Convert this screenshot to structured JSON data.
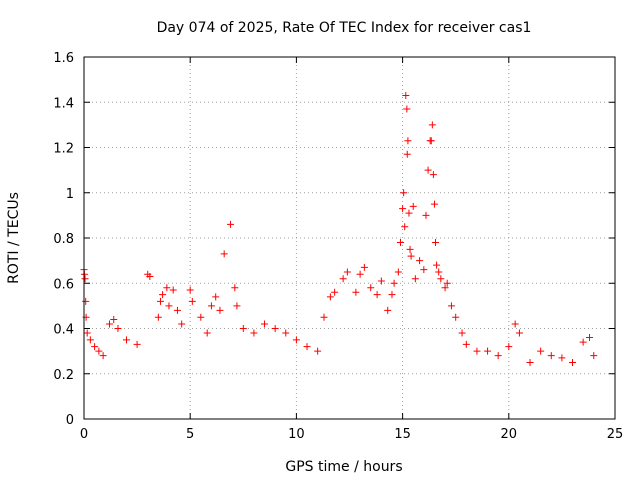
{
  "chart_data": {
    "type": "scatter",
    "title": "Day 074 of 2025, Rate Of TEC Index for receiver cas1",
    "xlabel": "GPS time / hours",
    "ylabel": "ROTI / TECUs",
    "xlim": [
      0,
      25
    ],
    "ylim": [
      0,
      1.6
    ],
    "xticks": [
      0,
      5,
      10,
      15,
      20,
      25
    ],
    "yticks": [
      0,
      0.2,
      0.4,
      0.6,
      0.8,
      1,
      1.2,
      1.4,
      1.6
    ],
    "ytick_labels": [
      "0",
      "0.2",
      "0.4",
      "0.6",
      "0.8",
      "1",
      "1.2",
      "1.4",
      "1.6"
    ],
    "grid": true,
    "marker": "plus",
    "color": "#ff0000",
    "series": [
      {
        "points": [
          [
            0.0,
            0.66
          ],
          [
            0.02,
            0.64
          ],
          [
            0.05,
            0.62
          ],
          [
            0.08,
            0.52
          ],
          [
            0.1,
            0.45
          ],
          [
            0.15,
            0.38
          ],
          [
            0.3,
            0.35
          ],
          [
            0.5,
            0.32
          ],
          [
            0.7,
            0.3
          ],
          [
            0.9,
            0.28
          ],
          [
            1.2,
            0.42
          ],
          [
            1.4,
            0.44
          ],
          [
            1.6,
            0.4
          ],
          [
            2.0,
            0.35
          ],
          [
            2.5,
            0.33
          ],
          [
            3.0,
            0.64
          ],
          [
            3.1,
            0.63
          ],
          [
            3.5,
            0.45
          ],
          [
            3.6,
            0.52
          ],
          [
            3.7,
            0.55
          ],
          [
            3.9,
            0.58
          ],
          [
            4.0,
            0.5
          ],
          [
            4.2,
            0.57
          ],
          [
            4.4,
            0.48
          ],
          [
            4.6,
            0.42
          ],
          [
            5.0,
            0.57
          ],
          [
            5.1,
            0.52
          ],
          [
            5.5,
            0.45
          ],
          [
            5.8,
            0.38
          ],
          [
            6.0,
            0.5
          ],
          [
            6.2,
            0.54
          ],
          [
            6.4,
            0.48
          ],
          [
            6.6,
            0.73
          ],
          [
            6.9,
            0.86
          ],
          [
            7.1,
            0.58
          ],
          [
            7.2,
            0.5
          ],
          [
            7.5,
            0.4
          ],
          [
            8.0,
            0.38
          ],
          [
            8.5,
            0.42
          ],
          [
            9.0,
            0.4
          ],
          [
            9.5,
            0.38
          ],
          [
            10.0,
            0.35
          ],
          [
            10.5,
            0.32
          ],
          [
            11.0,
            0.3
          ],
          [
            11.3,
            0.45
          ],
          [
            11.6,
            0.54
          ],
          [
            11.8,
            0.56
          ],
          [
            12.2,
            0.62
          ],
          [
            12.4,
            0.65
          ],
          [
            12.8,
            0.56
          ],
          [
            13.0,
            0.64
          ],
          [
            13.2,
            0.67
          ],
          [
            13.5,
            0.58
          ],
          [
            13.8,
            0.55
          ],
          [
            14.0,
            0.61
          ],
          [
            14.3,
            0.48
          ],
          [
            14.5,
            0.55
          ],
          [
            14.6,
            0.6
          ],
          [
            14.8,
            0.65
          ],
          [
            14.9,
            0.78
          ],
          [
            15.0,
            0.93
          ],
          [
            15.05,
            1.0
          ],
          [
            15.1,
            0.85
          ],
          [
            15.15,
            1.43
          ],
          [
            15.2,
            1.37
          ],
          [
            15.22,
            1.17
          ],
          [
            15.25,
            1.23
          ],
          [
            15.3,
            0.91
          ],
          [
            15.35,
            0.75
          ],
          [
            15.4,
            0.72
          ],
          [
            15.5,
            0.94
          ],
          [
            15.6,
            0.62
          ],
          [
            15.8,
            0.7
          ],
          [
            16.0,
            0.66
          ],
          [
            16.1,
            0.9
          ],
          [
            16.2,
            1.1
          ],
          [
            16.3,
            1.23
          ],
          [
            16.35,
            1.23
          ],
          [
            16.4,
            1.3
          ],
          [
            16.45,
            1.08
          ],
          [
            16.5,
            0.95
          ],
          [
            16.55,
            0.78
          ],
          [
            16.6,
            0.68
          ],
          [
            16.7,
            0.65
          ],
          [
            16.8,
            0.62
          ],
          [
            17.0,
            0.58
          ],
          [
            17.1,
            0.6
          ],
          [
            17.3,
            0.5
          ],
          [
            17.5,
            0.45
          ],
          [
            17.8,
            0.38
          ],
          [
            18.0,
            0.33
          ],
          [
            18.5,
            0.3
          ],
          [
            19.0,
            0.3
          ],
          [
            19.5,
            0.28
          ],
          [
            20.0,
            0.32
          ],
          [
            20.3,
            0.42
          ],
          [
            20.5,
            0.38
          ],
          [
            21.0,
            0.25
          ],
          [
            21.5,
            0.3
          ],
          [
            22.0,
            0.28
          ],
          [
            22.5,
            0.27
          ],
          [
            23.0,
            0.25
          ],
          [
            23.5,
            0.34
          ],
          [
            23.8,
            0.36
          ],
          [
            24.0,
            0.28
          ]
        ]
      }
    ]
  }
}
